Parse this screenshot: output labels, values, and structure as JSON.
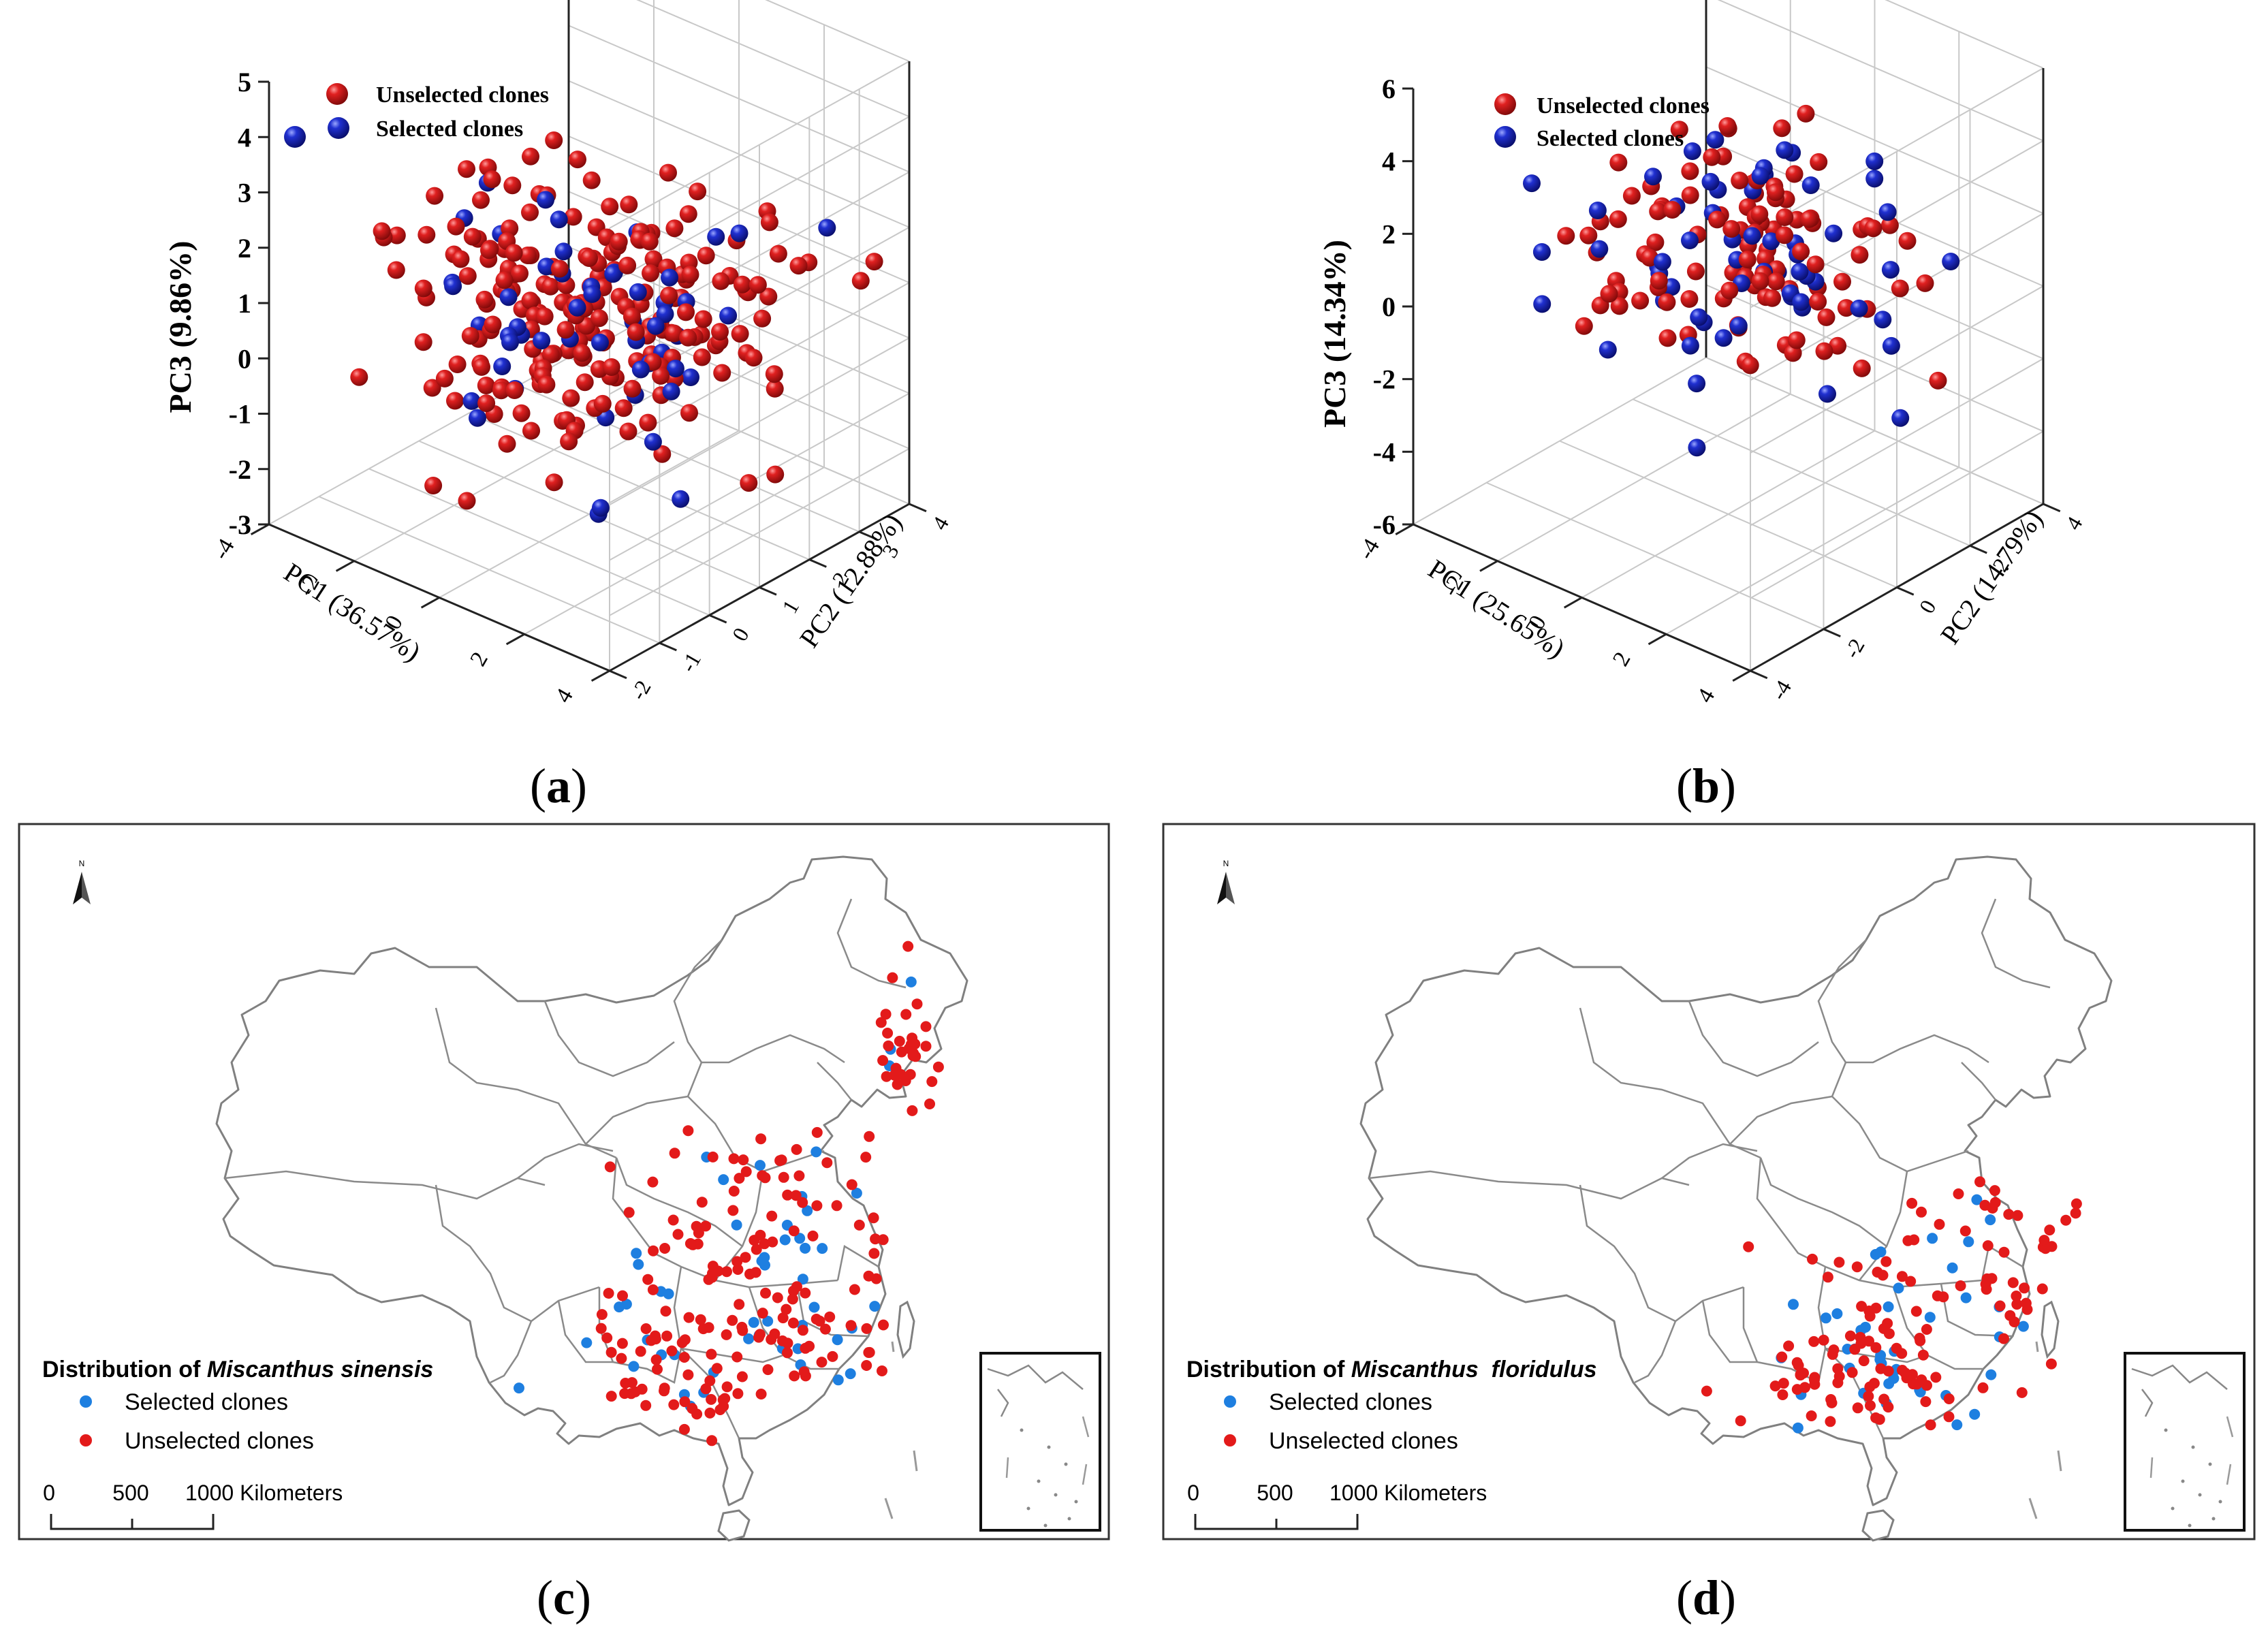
{
  "colors": {
    "unselected": "#cc1111",
    "selected": "#1a22a8",
    "map_selected": "#1e7fe0",
    "map_unselected": "#e31a1a",
    "grid": "#c8c8c8",
    "border": "#808080"
  },
  "panels": [
    {
      "id": "a",
      "caption": "a"
    },
    {
      "id": "b",
      "caption": "b"
    },
    {
      "id": "c",
      "caption": "c"
    },
    {
      "id": "d",
      "caption": "d"
    }
  ],
  "chart_data": [
    {
      "panel": "a",
      "type": "scatter",
      "subtype": "3d-scatter",
      "zlabel": "PC3 (9.86%)",
      "xlabel": "PC1 (36.57%)",
      "ylabel": "PC2 (12.88%)",
      "zlim": [
        -3,
        5
      ],
      "xlim": [
        -4,
        4
      ],
      "ylim": [
        -2,
        4
      ],
      "z_ticks": [
        "-3",
        "-2",
        "-1",
        "0",
        "1",
        "2",
        "3",
        "4",
        "5"
      ],
      "x_ticks": [
        "-4",
        "-2",
        "0",
        "2",
        "4"
      ],
      "y_ticks": [
        "-2",
        "-1",
        "0",
        "1",
        "2",
        "3",
        "4"
      ],
      "legend": [
        "Unselected clones",
        "Selected clones"
      ],
      "legend_position": "top-left",
      "series": [
        {
          "name": "Unselected clones",
          "count": 230
        },
        {
          "name": "Selected clones",
          "count": 55
        }
      ]
    },
    {
      "panel": "b",
      "type": "scatter",
      "subtype": "3d-scatter",
      "zlabel": "PC3 (14.34%)",
      "xlabel": "PC1 (25.65%)",
      "ylabel": "PC2 (14.79%)",
      "zlim": [
        -6,
        6
      ],
      "xlim": [
        -4,
        4
      ],
      "ylim": [
        -4,
        4
      ],
      "z_ticks": [
        "-6",
        "-4",
        "-2",
        "0",
        "2",
        "4",
        "6"
      ],
      "x_ticks": [
        "-4",
        "-2",
        "0",
        "2",
        "4"
      ],
      "y_ticks": [
        "-4",
        "-2",
        "0",
        "2",
        "4"
      ],
      "legend": [
        "Unselected clones",
        "Selected clones"
      ],
      "legend_position": "top-left",
      "series": [
        {
          "name": "Unselected clones",
          "count": 110
        },
        {
          "name": "Selected clones",
          "count": 60
        }
      ]
    },
    {
      "panel": "c",
      "type": "scatter",
      "subtype": "point-map",
      "legend_title_prefix": "Distribution of ",
      "species": "Miscanthus sinensis",
      "legend": [
        "Selected clones",
        "Unselected clones"
      ],
      "north": "N",
      "scale_ticks": [
        "0",
        "500",
        "1000 Kilometers"
      ],
      "series": [
        {
          "name": "Selected clones",
          "count": 50
        },
        {
          "name": "Unselected clones",
          "count": 200
        }
      ]
    },
    {
      "panel": "d",
      "type": "scatter",
      "subtype": "point-map",
      "legend_title_prefix": "Distribution of ",
      "species": "Miscanthus  floridulus",
      "legend": [
        "Selected clones",
        "Unselected clones"
      ],
      "north": "N",
      "scale_ticks": [
        "0",
        "500",
        "1000 Kilometers"
      ],
      "series": [
        {
          "name": "Selected clones",
          "count": 40
        },
        {
          "name": "Unselected clones",
          "count": 130
        }
      ]
    }
  ]
}
